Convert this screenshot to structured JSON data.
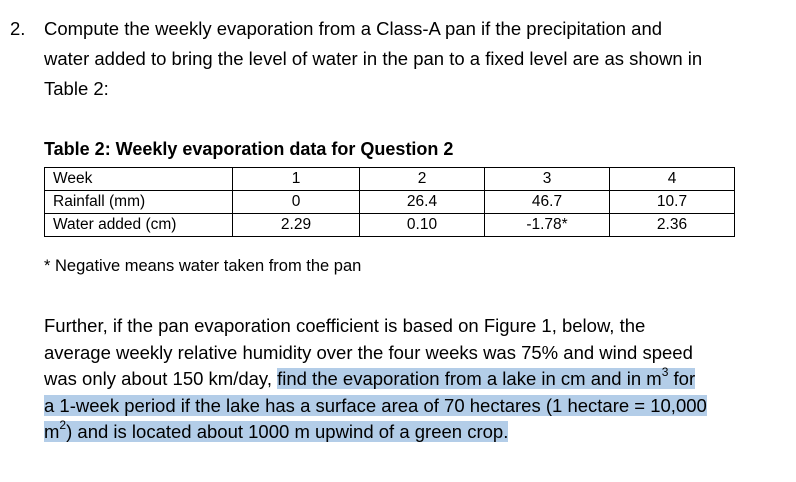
{
  "question": {
    "number": "2.",
    "lines": [
      "Compute the weekly evaporation from a Class-A pan if the precipitation and",
      "water added to bring the level of water in the pan to a fixed level are as shown in",
      "Table 2:"
    ]
  },
  "table": {
    "caption": "Table 2: Weekly evaporation data for Question 2",
    "header": {
      "label": "Week",
      "values": [
        "1",
        "2",
        "3",
        "4"
      ]
    },
    "rows": [
      {
        "label": "Rainfall (mm)",
        "values": [
          "0",
          "26.4",
          "46.7",
          "10.7"
        ]
      },
      {
        "label": "Water added (cm)",
        "values": [
          "2.29",
          "0.10",
          "-1.78*",
          "2.36"
        ]
      }
    ],
    "footnote": "* Negative means water taken from the pan"
  },
  "further": {
    "line1": "Further, if the pan evaporation coefficient is based on Figure 1, below, the",
    "line2": "average weekly relative humidity over the four weeks was 75% and wind speed",
    "line3_plain": "was only about 150 km/day, ",
    "line3_highlight_a": "find the evaporation from a lake in cm and in m",
    "line3_sup": "3",
    "line3_highlight_b": " for",
    "line4_highlight": "a 1-week period if the lake has a surface area of 70 hectares (1 hectare = 10,000",
    "line5_highlight_a": "m",
    "line5_sup": "2",
    "line5_highlight_b": ") and is located about 1000 m upwind of a green crop.",
    "highlight_color": "#b3cde8"
  }
}
